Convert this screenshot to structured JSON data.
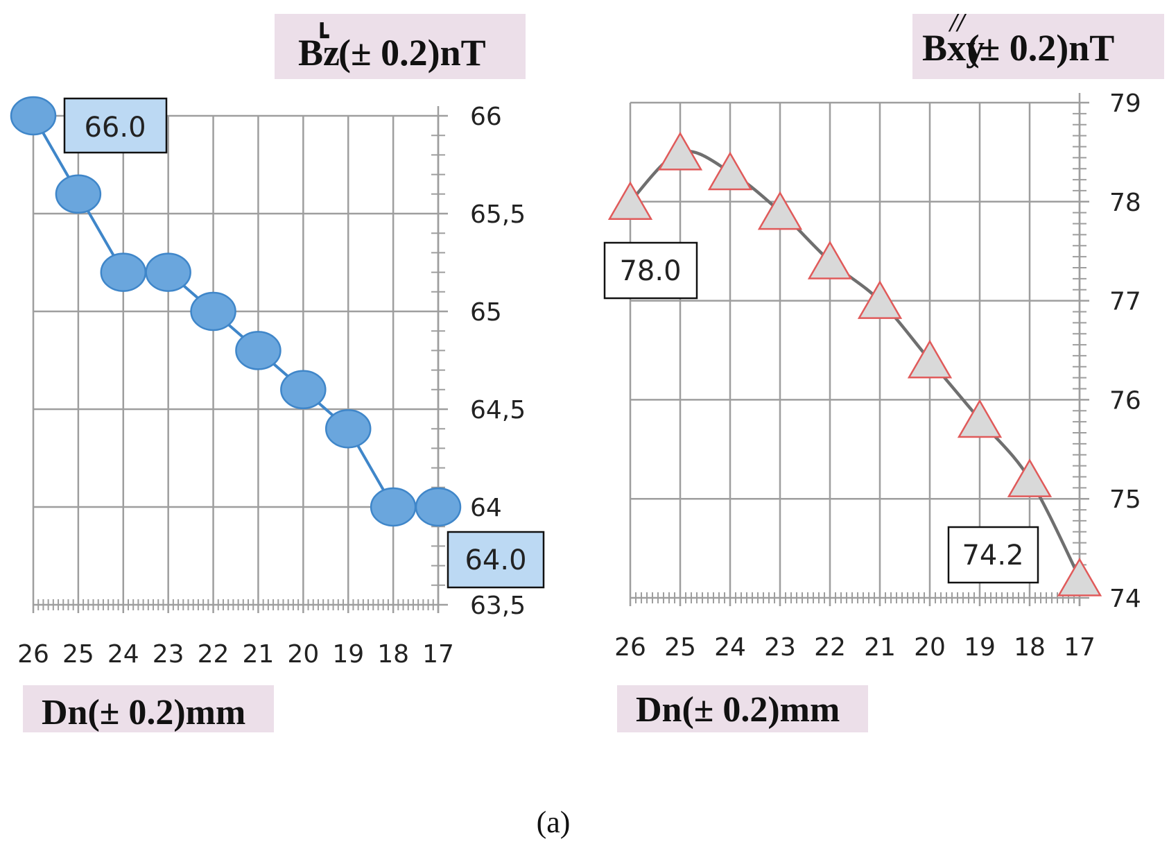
{
  "caption": "(a)",
  "colors": {
    "grid": "#9e9e9e",
    "label_bg": "#ecdfe9",
    "left_marker_fill": "#6aa6dd",
    "left_marker_stroke": "#3f86c9",
    "left_line": "#3f86c9",
    "left_callout_fill": "#bcd9f3",
    "right_marker_fill": "#d9d9d9",
    "right_marker_stroke": "#e05a5a",
    "right_line": "#6f6f6f",
    "right_callout_fill": "#ffffff"
  },
  "chart_data": [
    {
      "type": "line",
      "title_main": "Bz",
      "title_super": "┗",
      "title_rest": " (± 0.2)nT",
      "xlabel": "Dn(± 0.2)mm",
      "ylabel_side": "right",
      "marker": "circle",
      "categories": [
        "26",
        "25",
        "24",
        "23",
        "22",
        "21",
        "20",
        "19",
        "18",
        "17"
      ],
      "values": [
        66.0,
        65.6,
        65.2,
        65.2,
        65.0,
        64.8,
        64.6,
        64.4,
        64.0,
        64.0
      ],
      "ylim": [
        63.5,
        66
      ],
      "yticks": [
        63.5,
        64,
        64.5,
        65,
        65.5,
        66
      ],
      "ytick_labels": [
        "63,5",
        "64",
        "64,5",
        "65",
        "65,5",
        "66"
      ],
      "grid": true,
      "callouts": [
        {
          "text": "66.0",
          "index": 0
        },
        {
          "text": "64.0",
          "index": 9
        }
      ]
    },
    {
      "type": "line",
      "title_main": "Bxy",
      "title_super": "//",
      "title_rest": " (± 0.2)nT",
      "xlabel": "Dn(± 0.2)mm",
      "ylabel_side": "right",
      "marker": "triangle",
      "smooth": true,
      "categories": [
        "26",
        "25",
        "24",
        "23",
        "22",
        "21",
        "20",
        "19",
        "18",
        "17"
      ],
      "values": [
        78.0,
        78.5,
        78.3,
        77.9,
        77.4,
        77.0,
        76.4,
        75.8,
        75.2,
        74.2
      ],
      "ylim": [
        74,
        79
      ],
      "yticks": [
        74,
        75,
        76,
        77,
        78,
        79
      ],
      "ytick_labels": [
        "74",
        "75",
        "76",
        "77",
        "78",
        "79"
      ],
      "grid": true,
      "callouts": [
        {
          "text": "78.0",
          "index": 0
        },
        {
          "text": "74.2",
          "index": 9
        }
      ]
    }
  ]
}
